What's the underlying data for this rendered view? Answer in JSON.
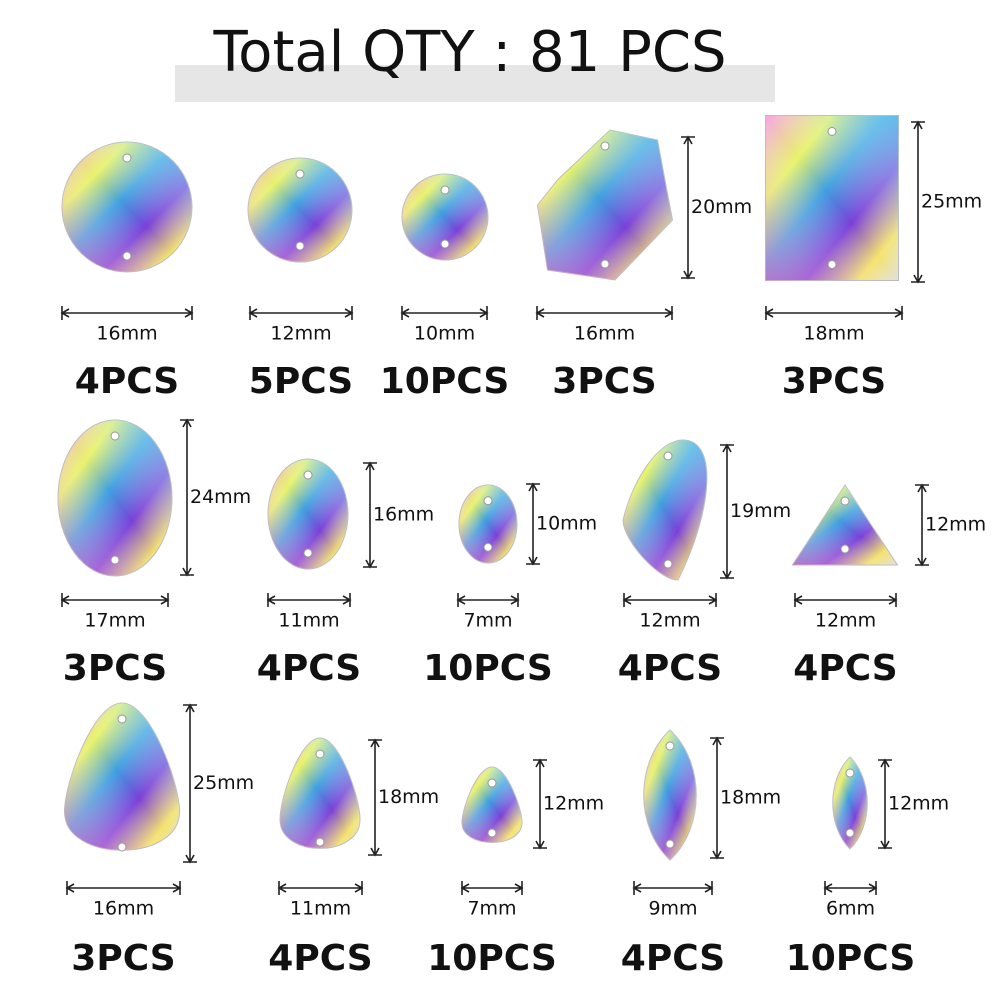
{
  "title": "Total QTY : 81 PCS",
  "items": [
    {
      "width": "16mm",
      "qty": "4PCS"
    },
    {
      "width": "12mm",
      "qty": "5PCS"
    },
    {
      "width": "10mm",
      "qty": "10PCS"
    },
    {
      "width": "16mm",
      "height": "20mm",
      "qty": "3PCS"
    },
    {
      "width": "18mm",
      "height": "25mm",
      "qty": "3PCS"
    },
    {
      "width": "17mm",
      "height": "24mm",
      "qty": "3PCS"
    },
    {
      "width": "11mm",
      "height": "16mm",
      "qty": "4PCS"
    },
    {
      "width": "7mm",
      "height": "10mm",
      "qty": "10PCS"
    },
    {
      "width": "12mm",
      "height": "19mm",
      "qty": "4PCS"
    },
    {
      "width": "12mm",
      "height": "12mm",
      "qty": "4PCS"
    },
    {
      "width": "16mm",
      "height": "25mm",
      "qty": "3PCS"
    },
    {
      "width": "11mm",
      "height": "18mm",
      "qty": "4PCS"
    },
    {
      "width": "7mm",
      "height": "12mm",
      "qty": "10PCS"
    },
    {
      "width": "9mm",
      "height": "18mm",
      "qty": "4PCS"
    },
    {
      "width": "6mm",
      "height": "12mm",
      "qty": "10PCS"
    }
  ]
}
